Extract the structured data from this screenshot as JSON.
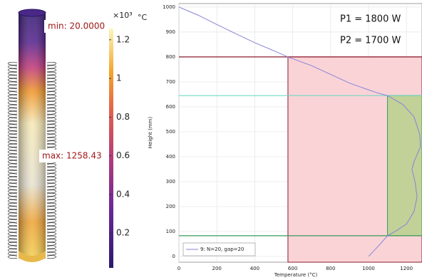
{
  "render": {
    "min_label": "min: 20.0000",
    "max_label": "max: 1258.43",
    "colorbar": {
      "scale_label": "×10³",
      "unit": "°C",
      "lim": [
        0.02,
        1.25843
      ],
      "ticks": [
        0.2,
        0.4,
        0.6,
        0.8,
        1,
        1.2
      ]
    }
  },
  "chart_data": {
    "type": "line",
    "xlabel": "Temperature (°C)",
    "ylabel": "Height (mm)",
    "annotations": [
      "P1 = 1800 W",
      "P2 = 1700 W"
    ],
    "x": [
      0,
      100,
      200,
      300,
      400,
      500,
      575,
      700,
      800,
      900,
      1000,
      1050,
      1100,
      1180,
      1240,
      1270,
      1274,
      1240,
      1229,
      1245,
      1256,
      1240,
      1200,
      1140,
      1100,
      1050,
      1000
    ],
    "series": [
      {
        "name": "9: N=20, gap=20",
        "color": "#8484d8",
        "values": [
          1000,
          968,
          930,
          893,
          857,
          825,
          800,
          765,
          730,
          695,
          668,
          655,
          645,
          610,
          560,
          490,
          440,
          380,
          350,
          300,
          240,
          180,
          130,
          100,
          83,
          40,
          0
        ]
      }
    ],
    "xlim": [
      0,
      1282
    ],
    "ylim": [
      -23,
      1014
    ],
    "xticks": [
      0,
      200,
      400,
      600,
      800,
      1000,
      1200
    ],
    "yticks": [
      0,
      100,
      200,
      300,
      400,
      500,
      600,
      700,
      800,
      900,
      1000
    ],
    "grid": true,
    "regions": [
      {
        "color": "#fad3d7",
        "edge": "#8b1a2b",
        "x": [
          575,
          1282
        ],
        "y": [
          -23,
          800
        ]
      },
      {
        "color": "#c2d198",
        "edge": "#3a9a5a",
        "x": [
          1100,
          1282
        ],
        "y": [
          83,
          645
        ]
      }
    ],
    "hlines": [
      {
        "value": 800,
        "color": "#8b1a2b"
      },
      {
        "value": 645,
        "color": "#6fdcc2"
      },
      {
        "value": 83,
        "color": "#3a9a5a"
      }
    ],
    "legend": "lower left"
  }
}
